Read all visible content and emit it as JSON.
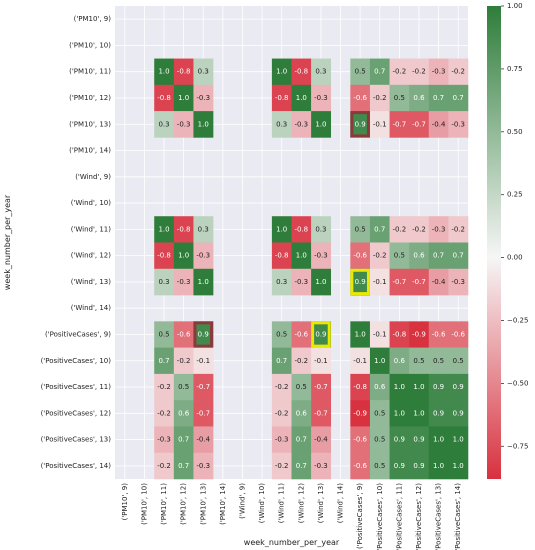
{
  "chart_data": {
    "type": "heatmap",
    "xlabel": "week_number_per_year",
    "ylabel": "week_number_per_year",
    "row_labels": [
      "('PM10', 9)",
      "('PM10', 10)",
      "('PM10', 11)",
      "('PM10', 12)",
      "('PM10', 13)",
      "('PM10', 14)",
      "('Wind', 9)",
      "('Wind', 10)",
      "('Wind', 11)",
      "('Wind', 12)",
      "('Wind', 13)",
      "('Wind', 14)",
      "('PositiveCases', 9)",
      "('PositiveCases', 10)",
      "('PositiveCases', 11)",
      "('PositiveCases', 12)",
      "('PositiveCases', 13)",
      "('PositiveCases', 14)"
    ],
    "col_labels": [
      "('PM10', 9)",
      "('PM10', 10)",
      "('PM10', 11)",
      "('PM10', 12)",
      "('PM10', 13)",
      "('PM10', 14)",
      "('Wind', 9)",
      "('Wind', 10)",
      "('Wind', 11)",
      "('Wind', 12)",
      "('Wind', 13)",
      "('Wind', 14)",
      "('PositiveCases', 9)",
      "('PositiveCases', 10)",
      "('PositiveCases', 11)",
      "('PositiveCases', 12)",
      "('PositiveCases', 13)",
      "('PositiveCases', 14)"
    ],
    "values": [
      [
        null,
        null,
        null,
        null,
        null,
        null,
        null,
        null,
        null,
        null,
        null,
        null,
        null,
        null,
        null,
        null,
        null,
        null
      ],
      [
        null,
        null,
        null,
        null,
        null,
        null,
        null,
        null,
        null,
        null,
        null,
        null,
        null,
        null,
        null,
        null,
        null,
        null
      ],
      [
        null,
        null,
        1.0,
        -0.8,
        0.3,
        null,
        null,
        null,
        1.0,
        -0.8,
        0.3,
        null,
        0.5,
        0.7,
        -0.2,
        -0.2,
        -0.3,
        -0.2
      ],
      [
        null,
        null,
        -0.8,
        1.0,
        -0.3,
        null,
        null,
        null,
        -0.8,
        1.0,
        -0.3,
        null,
        -0.6,
        -0.2,
        0.5,
        0.6,
        0.7,
        0.7
      ],
      [
        null,
        null,
        0.3,
        -0.3,
        1.0,
        null,
        null,
        null,
        0.3,
        -0.3,
        1.0,
        null,
        0.9,
        -0.1,
        -0.7,
        -0.7,
        -0.4,
        -0.3
      ],
      [
        null,
        null,
        null,
        null,
        null,
        null,
        null,
        null,
        null,
        null,
        null,
        null,
        null,
        null,
        null,
        null,
        null,
        null
      ],
      [
        null,
        null,
        null,
        null,
        null,
        null,
        null,
        null,
        null,
        null,
        null,
        null,
        null,
        null,
        null,
        null,
        null,
        null
      ],
      [
        null,
        null,
        null,
        null,
        null,
        null,
        null,
        null,
        null,
        null,
        null,
        null,
        null,
        null,
        null,
        null,
        null,
        null
      ],
      [
        null,
        null,
        1.0,
        -0.8,
        0.3,
        null,
        null,
        null,
        1.0,
        -0.8,
        0.3,
        null,
        0.5,
        0.7,
        -0.2,
        -0.2,
        -0.3,
        -0.2
      ],
      [
        null,
        null,
        -0.8,
        1.0,
        -0.3,
        null,
        null,
        null,
        -0.8,
        1.0,
        -0.3,
        null,
        -0.6,
        -0.2,
        0.5,
        0.6,
        0.7,
        0.7
      ],
      [
        null,
        null,
        0.3,
        -0.3,
        1.0,
        null,
        null,
        null,
        0.3,
        -0.3,
        1.0,
        null,
        0.9,
        -0.1,
        -0.7,
        -0.7,
        -0.4,
        -0.3
      ],
      [
        null,
        null,
        null,
        null,
        null,
        null,
        null,
        null,
        null,
        null,
        null,
        null,
        null,
        null,
        null,
        null,
        null,
        null
      ],
      [
        null,
        null,
        0.5,
        -0.6,
        0.9,
        null,
        null,
        null,
        0.5,
        -0.6,
        0.9,
        null,
        1.0,
        -0.1,
        -0.8,
        -0.9,
        -0.6,
        -0.6
      ],
      [
        null,
        null,
        0.7,
        -0.2,
        -0.1,
        null,
        null,
        null,
        0.7,
        -0.2,
        -0.1,
        null,
        -0.1,
        1.0,
        0.6,
        0.5,
        0.5,
        0.5
      ],
      [
        null,
        null,
        -0.2,
        0.5,
        -0.7,
        null,
        null,
        null,
        -0.2,
        0.5,
        -0.7,
        null,
        -0.8,
        0.6,
        1.0,
        1.0,
        0.9,
        0.9
      ],
      [
        null,
        null,
        -0.2,
        0.6,
        -0.7,
        null,
        null,
        null,
        -0.2,
        0.6,
        -0.7,
        null,
        -0.9,
        0.5,
        1.0,
        1.0,
        0.9,
        0.9
      ],
      [
        null,
        null,
        -0.3,
        0.7,
        -0.4,
        null,
        null,
        null,
        -0.3,
        0.7,
        -0.4,
        null,
        -0.6,
        0.5,
        0.9,
        0.9,
        1.0,
        1.0
      ],
      [
        null,
        null,
        -0.2,
        0.7,
        -0.3,
        null,
        null,
        null,
        -0.2,
        0.7,
        -0.3,
        null,
        -0.6,
        0.5,
        0.9,
        0.9,
        1.0,
        1.0
      ]
    ],
    "highlights": [
      {
        "row": 4,
        "col": 12,
        "color": "#8a3a3a"
      },
      {
        "row": 10,
        "col": 12,
        "color": "#e8e800"
      },
      {
        "row": 12,
        "col": 4,
        "color": "#8a3a3a"
      },
      {
        "row": 12,
        "col": 10,
        "color": "#e8e800"
      }
    ],
    "colorbar": {
      "vmin": -0.88,
      "vmax": 1.0,
      "ticks": [
        1.0,
        0.75,
        0.5,
        0.25,
        0.0,
        -0.25,
        -0.5,
        -0.75
      ],
      "tick_labels": [
        "1.00",
        "0.75",
        "0.50",
        "0.25",
        "0.00",
        "−0.25",
        "−0.50",
        "−0.75"
      ],
      "colors": {
        "low": "#d8313f",
        "mid": "#f6f6f6",
        "high": "#2e7d3a"
      }
    },
    "background": "#eaeaf2",
    "grid": true
  }
}
